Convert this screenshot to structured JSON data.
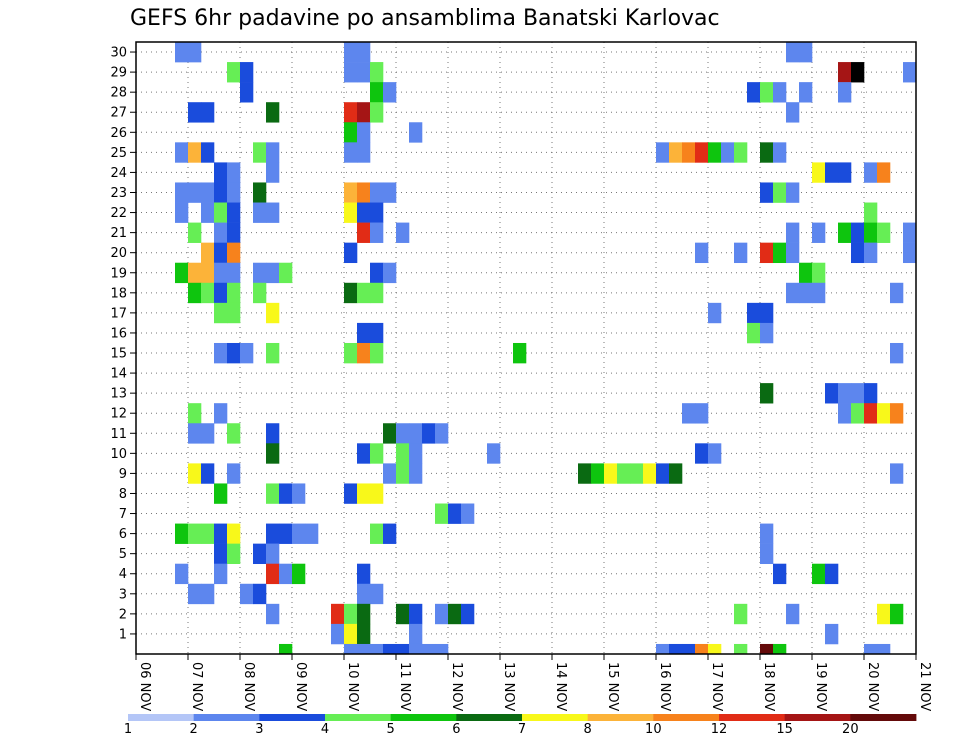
{
  "chart_data": {
    "type": "heatmap",
    "title": "GEFS 6hr padavine po ansamblima Banatski Karlovac",
    "xlabel": "",
    "ylabel": "",
    "x_tick_labels": [
      "06 NOV",
      "07 NOV",
      "08 NOV",
      "09 NOV",
      "10 NOV",
      "11 NOV",
      "12 NOV",
      "13 NOV",
      "14 NOV",
      "15 NOV",
      "16 NOV",
      "17 NOV",
      "18 NOV",
      "19 NOV",
      "20 NOV",
      "21 NOV"
    ],
    "y_tick_labels": [
      "1",
      "2",
      "3",
      "4",
      "5",
      "6",
      "7",
      "8",
      "9",
      "10",
      "11",
      "12",
      "13",
      "14",
      "15",
      "16",
      "17",
      "18",
      "19",
      "20",
      "21",
      "22",
      "23",
      "24",
      "25",
      "26",
      "27",
      "28",
      "29",
      "30"
    ],
    "x_steps_per_day": 4,
    "y_range": [
      0,
      30
    ],
    "grid": true,
    "colorbar": {
      "labels": [
        "1",
        "2",
        "3",
        "4",
        "5",
        "6",
        "7",
        "8",
        "10",
        "12",
        "15",
        "20"
      ],
      "colors": [
        "#b4c6f7",
        "#5d86ee",
        "#1a4cdc",
        "#66ee55",
        "#0ec50e",
        "#0a6a12",
        "#f8f81a",
        "#fcb339",
        "#f7821c",
        "#e12c16",
        "#a51515",
        "#640a0a"
      ]
    },
    "cells": [
      [
        3,
        30,
        1
      ],
      [
        4,
        30,
        1
      ],
      [
        16,
        30,
        1
      ],
      [
        17,
        30,
        1
      ],
      [
        50,
        30,
        1
      ],
      [
        51,
        30,
        1
      ],
      [
        16,
        29,
        1
      ],
      [
        17,
        29,
        1
      ],
      [
        18,
        29,
        3
      ],
      [
        7,
        29,
        3
      ],
      [
        8,
        29,
        2
      ],
      [
        54,
        29,
        10
      ],
      [
        55,
        29,
        12
      ],
      [
        59,
        29,
        1
      ],
      [
        8,
        28,
        2
      ],
      [
        18,
        28,
        4
      ],
      [
        19,
        28,
        1
      ],
      [
        47,
        28,
        2
      ],
      [
        48,
        28,
        3
      ],
      [
        49,
        28,
        1
      ],
      [
        51,
        28,
        1
      ],
      [
        54,
        28,
        1
      ],
      [
        4,
        27,
        2
      ],
      [
        5,
        27,
        2
      ],
      [
        10,
        27,
        5
      ],
      [
        16,
        27,
        9
      ],
      [
        17,
        27,
        10
      ],
      [
        18,
        27,
        3
      ],
      [
        50,
        27,
        1
      ],
      [
        16,
        26,
        4
      ],
      [
        17,
        26,
        1
      ],
      [
        21,
        26,
        1
      ],
      [
        3,
        25,
        1
      ],
      [
        4,
        25,
        7
      ],
      [
        5,
        25,
        2
      ],
      [
        9,
        25,
        3
      ],
      [
        10,
        25,
        1
      ],
      [
        16,
        25,
        1
      ],
      [
        17,
        25,
        1
      ],
      [
        40,
        25,
        1
      ],
      [
        41,
        25,
        7
      ],
      [
        42,
        25,
        8
      ],
      [
        43,
        25,
        9
      ],
      [
        44,
        25,
        4
      ],
      [
        45,
        25,
        1
      ],
      [
        46,
        25,
        3
      ],
      [
        48,
        25,
        5
      ],
      [
        49,
        25,
        1
      ],
      [
        6,
        24,
        2
      ],
      [
        7,
        24,
        1
      ],
      [
        10,
        24,
        1
      ],
      [
        52,
        24,
        6
      ],
      [
        53,
        24,
        2
      ],
      [
        54,
        24,
        2
      ],
      [
        56,
        24,
        1
      ],
      [
        57,
        24,
        8
      ],
      [
        3,
        23,
        1
      ],
      [
        4,
        23,
        1
      ],
      [
        5,
        23,
        1
      ],
      [
        6,
        23,
        2
      ],
      [
        7,
        23,
        1
      ],
      [
        9,
        23,
        5
      ],
      [
        16,
        23,
        7
      ],
      [
        17,
        23,
        8
      ],
      [
        18,
        23,
        1
      ],
      [
        19,
        23,
        1
      ],
      [
        48,
        23,
        2
      ],
      [
        49,
        23,
        3
      ],
      [
        50,
        23,
        1
      ],
      [
        3,
        22,
        1
      ],
      [
        5,
        22,
        1
      ],
      [
        6,
        22,
        3
      ],
      [
        7,
        22,
        2
      ],
      [
        9,
        22,
        1
      ],
      [
        10,
        22,
        1
      ],
      [
        16,
        22,
        6
      ],
      [
        17,
        22,
        2
      ],
      [
        18,
        22,
        2
      ],
      [
        56,
        22,
        3
      ],
      [
        4,
        21,
        3
      ],
      [
        6,
        21,
        1
      ],
      [
        7,
        21,
        2
      ],
      [
        17,
        21,
        9
      ],
      [
        18,
        21,
        1
      ],
      [
        20,
        21,
        1
      ],
      [
        50,
        21,
        1
      ],
      [
        52,
        21,
        1
      ],
      [
        54,
        21,
        4
      ],
      [
        55,
        21,
        2
      ],
      [
        56,
        21,
        4
      ],
      [
        57,
        21,
        3
      ],
      [
        59,
        21,
        1
      ],
      [
        5,
        20,
        7
      ],
      [
        6,
        20,
        2
      ],
      [
        7,
        20,
        8
      ],
      [
        16,
        20,
        2
      ],
      [
        43,
        20,
        1
      ],
      [
        46,
        20,
        1
      ],
      [
        48,
        20,
        9
      ],
      [
        49,
        20,
        4
      ],
      [
        50,
        20,
        1
      ],
      [
        55,
        20,
        2
      ],
      [
        56,
        20,
        1
      ],
      [
        59,
        20,
        1
      ],
      [
        3,
        19,
        4
      ],
      [
        4,
        19,
        7
      ],
      [
        5,
        19,
        7
      ],
      [
        6,
        19,
        1
      ],
      [
        7,
        19,
        1
      ],
      [
        9,
        19,
        1
      ],
      [
        10,
        19,
        1
      ],
      [
        11,
        19,
        3
      ],
      [
        18,
        19,
        2
      ],
      [
        19,
        19,
        1
      ],
      [
        51,
        19,
        4
      ],
      [
        52,
        19,
        3
      ],
      [
        4,
        18,
        4
      ],
      [
        5,
        18,
        3
      ],
      [
        6,
        18,
        2
      ],
      [
        7,
        18,
        3
      ],
      [
        9,
        18,
        3
      ],
      [
        16,
        18,
        5
      ],
      [
        17,
        18,
        3
      ],
      [
        18,
        18,
        3
      ],
      [
        50,
        18,
        1
      ],
      [
        51,
        18,
        1
      ],
      [
        52,
        18,
        1
      ],
      [
        58,
        18,
        1
      ],
      [
        6,
        17,
        3
      ],
      [
        7,
        17,
        3
      ],
      [
        10,
        17,
        6
      ],
      [
        44,
        17,
        1
      ],
      [
        47,
        17,
        2
      ],
      [
        48,
        17,
        2
      ],
      [
        17,
        16,
        2
      ],
      [
        18,
        16,
        2
      ],
      [
        47,
        16,
        3
      ],
      [
        48,
        16,
        1
      ],
      [
        6,
        15,
        1
      ],
      [
        7,
        15,
        2
      ],
      [
        8,
        15,
        1
      ],
      [
        10,
        15,
        3
      ],
      [
        16,
        15,
        3
      ],
      [
        17,
        15,
        8
      ],
      [
        18,
        15,
        3
      ],
      [
        29,
        15,
        4
      ],
      [
        58,
        15,
        1
      ],
      [
        48,
        13,
        5
      ],
      [
        53,
        13,
        2
      ],
      [
        54,
        13,
        1
      ],
      [
        55,
        13,
        1
      ],
      [
        56,
        13,
        2
      ],
      [
        4,
        12,
        3
      ],
      [
        6,
        12,
        1
      ],
      [
        42,
        12,
        1
      ],
      [
        43,
        12,
        1
      ],
      [
        54,
        12,
        1
      ],
      [
        55,
        12,
        3
      ],
      [
        56,
        12,
        9
      ],
      [
        57,
        12,
        6
      ],
      [
        58,
        12,
        8
      ],
      [
        4,
        11,
        1
      ],
      [
        5,
        11,
        1
      ],
      [
        7,
        11,
        3
      ],
      [
        10,
        11,
        2
      ],
      [
        19,
        11,
        5
      ],
      [
        20,
        11,
        1
      ],
      [
        21,
        11,
        1
      ],
      [
        22,
        11,
        2
      ],
      [
        23,
        11,
        1
      ],
      [
        10,
        10,
        5
      ],
      [
        17,
        10,
        2
      ],
      [
        18,
        10,
        3
      ],
      [
        20,
        10,
        3
      ],
      [
        21,
        10,
        1
      ],
      [
        27,
        10,
        1
      ],
      [
        43,
        10,
        2
      ],
      [
        44,
        10,
        1
      ],
      [
        4,
        9,
        6
      ],
      [
        5,
        9,
        2
      ],
      [
        7,
        9,
        1
      ],
      [
        19,
        9,
        1
      ],
      [
        20,
        9,
        3
      ],
      [
        21,
        9,
        1
      ],
      [
        34,
        9,
        5
      ],
      [
        35,
        9,
        4
      ],
      [
        36,
        9,
        6
      ],
      [
        37,
        9,
        3
      ],
      [
        38,
        9,
        3
      ],
      [
        39,
        9,
        6
      ],
      [
        40,
        9,
        2
      ],
      [
        41,
        9,
        5
      ],
      [
        58,
        9,
        1
      ],
      [
        6,
        8,
        4
      ],
      [
        10,
        8,
        3
      ],
      [
        11,
        8,
        2
      ],
      [
        12,
        8,
        1
      ],
      [
        16,
        8,
        2
      ],
      [
        17,
        8,
        6
      ],
      [
        18,
        8,
        6
      ],
      [
        23,
        7,
        3
      ],
      [
        24,
        7,
        2
      ],
      [
        25,
        7,
        1
      ],
      [
        3,
        6,
        4
      ],
      [
        4,
        6,
        3
      ],
      [
        5,
        6,
        3
      ],
      [
        6,
        6,
        2
      ],
      [
        7,
        6,
        6
      ],
      [
        10,
        6,
        2
      ],
      [
        11,
        6,
        2
      ],
      [
        12,
        6,
        1
      ],
      [
        13,
        6,
        1
      ],
      [
        18,
        6,
        3
      ],
      [
        19,
        6,
        2
      ],
      [
        48,
        6,
        1
      ],
      [
        6,
        5,
        2
      ],
      [
        7,
        5,
        3
      ],
      [
        9,
        5,
        2
      ],
      [
        10,
        5,
        1
      ],
      [
        48,
        5,
        1
      ],
      [
        3,
        4,
        1
      ],
      [
        6,
        4,
        1
      ],
      [
        10,
        4,
        9
      ],
      [
        11,
        4,
        1
      ],
      [
        12,
        4,
        4
      ],
      [
        17,
        4,
        2
      ],
      [
        49,
        4,
        2
      ],
      [
        52,
        4,
        4
      ],
      [
        53,
        4,
        2
      ],
      [
        4,
        3,
        1
      ],
      [
        5,
        3,
        1
      ],
      [
        8,
        3,
        1
      ],
      [
        9,
        3,
        2
      ],
      [
        17,
        3,
        1
      ],
      [
        18,
        3,
        1
      ],
      [
        10,
        2,
        1
      ],
      [
        15,
        2,
        9
      ],
      [
        16,
        2,
        3
      ],
      [
        17,
        2,
        5
      ],
      [
        20,
        2,
        5
      ],
      [
        21,
        2,
        2
      ],
      [
        23,
        2,
        1
      ],
      [
        24,
        2,
        5
      ],
      [
        25,
        2,
        2
      ],
      [
        46,
        2,
        3
      ],
      [
        50,
        2,
        1
      ],
      [
        57,
        2,
        6
      ],
      [
        58,
        2,
        4
      ],
      [
        15,
        1,
        1
      ],
      [
        16,
        1,
        6
      ],
      [
        17,
        1,
        5
      ],
      [
        21,
        1,
        1
      ],
      [
        53,
        1,
        1
      ],
      [
        11,
        0,
        4
      ],
      [
        16,
        0,
        1
      ],
      [
        17,
        0,
        1
      ],
      [
        18,
        0,
        1
      ],
      [
        19,
        0,
        2
      ],
      [
        20,
        0,
        2
      ],
      [
        21,
        0,
        1
      ],
      [
        22,
        0,
        1
      ],
      [
        23,
        0,
        1
      ],
      [
        40,
        0,
        1
      ],
      [
        41,
        0,
        2
      ],
      [
        42,
        0,
        2
      ],
      [
        43,
        0,
        8
      ],
      [
        44,
        0,
        6
      ],
      [
        46,
        0,
        3
      ],
      [
        48,
        0,
        11
      ],
      [
        49,
        0,
        4
      ],
      [
        56,
        0,
        1
      ],
      [
        57,
        0,
        1
      ]
    ]
  }
}
